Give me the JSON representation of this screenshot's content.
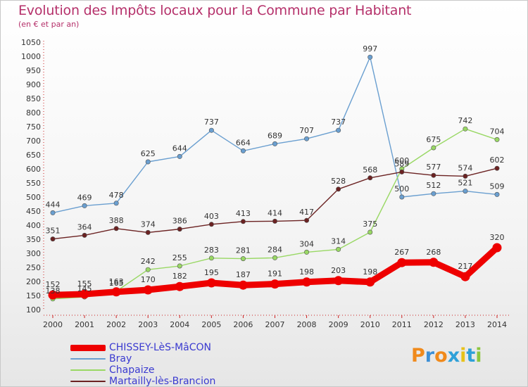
{
  "header": {
    "title": "Evolution des Impôts locaux pour la Commune par Habitant",
    "subtitle": "(en € et par an)"
  },
  "logo": {
    "text": "Proxiti",
    "colors": [
      "#f08a1c",
      "#3c8fd6",
      "#f08a1c",
      "#2ea0d8",
      "#e8c21a",
      "#2ea0d8",
      "#8cc63e"
    ]
  },
  "chart_data": {
    "type": "line",
    "title": "Evolution des Impôts locaux pour la Commune par Habitant",
    "subtitle": "(en € et par an)",
    "x": [
      "2000",
      "2001",
      "2002",
      "2003",
      "2004",
      "2005",
      "2006",
      "2007",
      "2008",
      "2009",
      "2010",
      "2011",
      "2012",
      "2013",
      "2014"
    ],
    "ylim": [
      100,
      1050
    ],
    "yticks": [
      100,
      150,
      200,
      250,
      300,
      350,
      400,
      450,
      500,
      550,
      600,
      650,
      700,
      750,
      800,
      850,
      900,
      950,
      1000,
      1050
    ],
    "grid": false,
    "legend_position": "bottom-left",
    "series": [
      {
        "name": "CHISSEY-LèS-MâCON",
        "color": "#ee0000",
        "emphasis": "thick",
        "values": [
          152,
          155,
          163,
          170,
          182,
          195,
          187,
          191,
          198,
          203,
          198,
          267,
          268,
          217,
          320
        ]
      },
      {
        "name": "Bray",
        "color": "#6a9fd0",
        "values": [
          444,
          469,
          478,
          625,
          644,
          737,
          664,
          689,
          707,
          737,
          997,
          500,
          512,
          521,
          509
        ]
      },
      {
        "name": "Chapaize",
        "color": "#99d864",
        "values": [
          138,
          145,
          165,
          242,
          255,
          283,
          281,
          284,
          304,
          314,
          375,
          600,
          675,
          742,
          704
        ]
      },
      {
        "name": "Martailly-lès-Brancion",
        "color": "#6b2222",
        "values": [
          351,
          364,
          388,
          374,
          386,
          403,
          413,
          414,
          417,
          528,
          568,
          589,
          577,
          574,
          602
        ]
      }
    ],
    "visible_labels": {
      "CHISSEY-LèS-MâCON": [
        "152",
        "155",
        "163",
        "170",
        "182",
        "195",
        "187",
        "191",
        "198",
        "203",
        "198",
        "267",
        "268",
        "217",
        "320"
      ],
      "Bray": [
        "444",
        "469",
        "478",
        "625",
        "644",
        "737",
        "664",
        "689",
        "707",
        "737",
        "997",
        "500",
        "512",
        "521",
        "509"
      ],
      "Chapaize": [
        "138",
        "145",
        "165",
        "242",
        "255",
        "283",
        "281",
        "284",
        "304",
        "314",
        "375",
        "600",
        "675",
        "742",
        "704"
      ],
      "Martailly-lès-Brancion": [
        "351",
        "364",
        "388",
        "374",
        "386",
        "403",
        "413",
        "414",
        "417",
        "528",
        "568",
        "589",
        "577",
        "574",
        "602"
      ]
    }
  }
}
